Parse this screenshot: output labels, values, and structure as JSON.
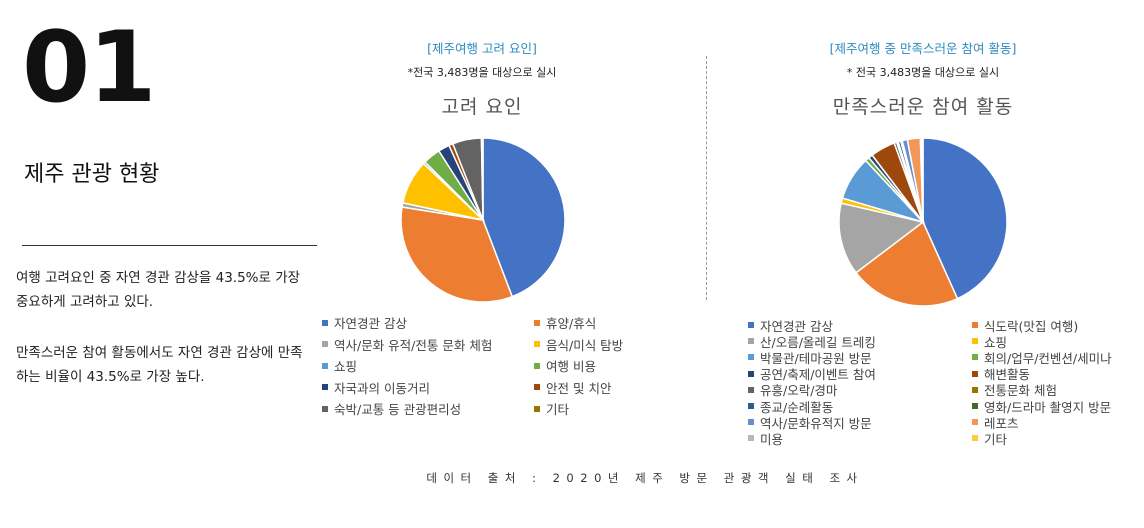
{
  "header": {
    "number": "01",
    "title": "제주 관광 현황"
  },
  "summary": {
    "p1": "여행 고려요인 중 자연 경관 감상을 43.5%로 가장 중요하게 고려하고 있다.",
    "p2": "만족스러운 참여 활동에서도 자연 경관 감상에 만족하는 비율이 43.5%로 가장 높다."
  },
  "source": "데이터 출처 : 2020년 제주 방문 관광객 실태 조사",
  "chart_data": [
    {
      "type": "pie",
      "heading": "[제주여행 고려 요인]",
      "note": "*전국 3,483명을 대상으로 실시",
      "title": "고려 요인",
      "legend_placement": "bottom",
      "categories": [
        "자연경관 감상",
        "휴양/휴식",
        "역사/문화 유적/전통 문화 체험",
        "음식/미식 탐방",
        "쇼핑",
        "여행 비용",
        "자국과의 이동거리",
        "안전 및 치안",
        "숙박/교통 등 관광편리성",
        "기타"
      ],
      "values": [
        43.5,
        32.8,
        0.8,
        8.6,
        0.4,
        3.4,
        2.2,
        0.8,
        5.6,
        0.3
      ],
      "colors": [
        "#4472c4",
        "#ed7d31",
        "#a5a5a5",
        "#ffc000",
        "#5b9bd5",
        "#70ad47",
        "#264478",
        "#9e480e",
        "#636363",
        "#997300"
      ]
    },
    {
      "type": "pie",
      "heading": "[제주여행 중 만족스러운 참여 활동]",
      "note": "* 전국 3,483명을 대상으로 실시",
      "title": "만족스러운 참여 활동",
      "legend_placement": "bottom",
      "categories": [
        "자연경관 감상",
        "식도락(맛집 여행)",
        "산/오름/올레길 트레킹",
        "쇼핑",
        "박물관/테마공원 방문",
        "회의/업무/컨벤션/세미나",
        "공연/축제/이벤트 참여",
        "해변활동",
        "유흥/오락/경마",
        "전통문화 체험",
        "종교/순례활동",
        "영화/드라마 촬영지 방문",
        "역사/문화유적지 방문",
        "레포츠",
        "미용",
        "기타"
      ],
      "values": [
        43.5,
        21.5,
        14.0,
        1.0,
        8.5,
        0.8,
        0.8,
        4.8,
        0.5,
        0.3,
        0.5,
        0.3,
        1.0,
        2.5,
        0.3,
        0.2
      ],
      "colors": [
        "#4472c4",
        "#ed7d31",
        "#a5a5a5",
        "#ffc000",
        "#5b9bd5",
        "#70ad47",
        "#264478",
        "#9e480e",
        "#636363",
        "#997300",
        "#255e91",
        "#43682b",
        "#698ed0",
        "#f1975a",
        "#b7b7b7",
        "#ffcd33"
      ]
    }
  ]
}
